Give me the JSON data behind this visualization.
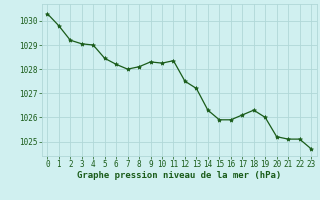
{
  "x": [
    0,
    1,
    2,
    3,
    4,
    5,
    6,
    7,
    8,
    9,
    10,
    11,
    12,
    13,
    14,
    15,
    16,
    17,
    18,
    19,
    20,
    21,
    22,
    23
  ],
  "y": [
    1030.3,
    1029.8,
    1029.2,
    1029.05,
    1029.0,
    1028.45,
    1028.2,
    1028.0,
    1028.1,
    1028.3,
    1028.25,
    1028.35,
    1027.5,
    1027.2,
    1026.3,
    1025.9,
    1025.9,
    1026.1,
    1026.3,
    1026.0,
    1025.2,
    1025.1,
    1025.1,
    1024.7
  ],
  "line_color": "#1a5c1a",
  "marker": "*",
  "marker_color": "#1a5c1a",
  "bg_color": "#d0f0f0",
  "grid_color": "#b0d8d8",
  "xlabel": "Graphe pression niveau de la mer (hPa)",
  "xlabel_color": "#1a5c1a",
  "tick_color": "#1a5c1a",
  "ylim": [
    1024.4,
    1030.7
  ],
  "yticks": [
    1025,
    1026,
    1027,
    1028,
    1029,
    1030
  ],
  "xticks": [
    0,
    1,
    2,
    3,
    4,
    5,
    6,
    7,
    8,
    9,
    10,
    11,
    12,
    13,
    14,
    15,
    16,
    17,
    18,
    19,
    20,
    21,
    22,
    23
  ],
  "tick_fontsize": 5.5,
  "xlabel_fontsize": 6.5,
  "line_width": 0.9,
  "marker_size": 3.0
}
